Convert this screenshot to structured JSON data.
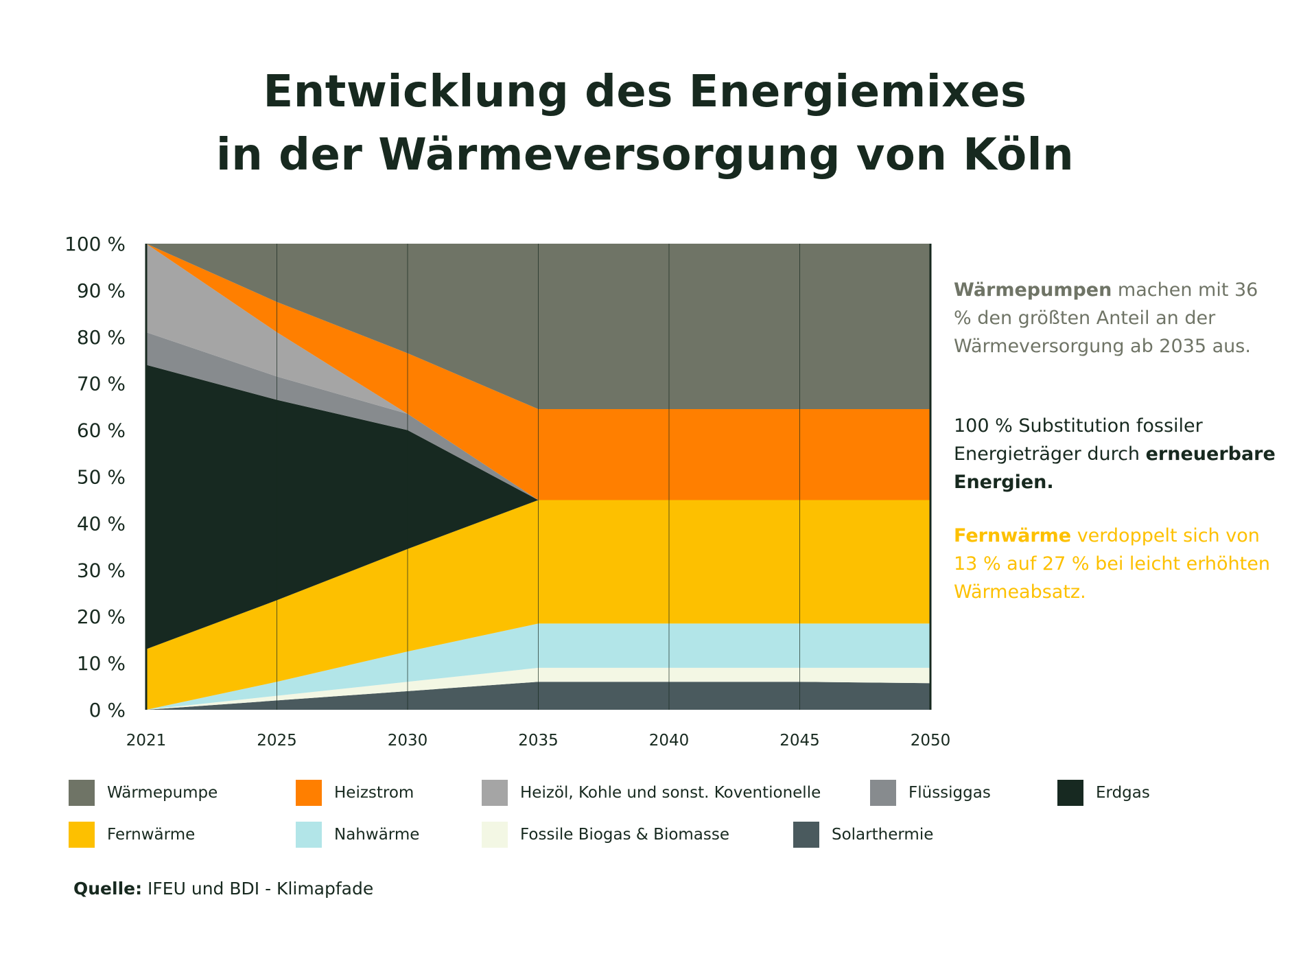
{
  "title": [
    "Entwicklung des Energiemixes",
    "in der Wärmeversorgung von Köln"
  ],
  "side_text": {
    "block1_bold": "Wärmepumpen",
    "block1_rest": " machen mit 36 % den größten Anteil an der Wärmeversorgung ab 2035 aus.",
    "block2_text": "100 % Substitution fossiler Energieträger durch ",
    "block2_bold": "erneuerbare Energien.",
    "block3_bold": "Fernwärme",
    "block3_rest": " verdoppelt sich von 13 % auf 27 % bei leicht erhöhten Wärmeabsatz."
  },
  "source": {
    "label": "Quelle:",
    "text": " IFEU und BDI - Klimapfade"
  },
  "chart_data": {
    "type": "area",
    "stacked": true,
    "categories": [
      "2021",
      "2025",
      "2030",
      "2035",
      "2040",
      "2045",
      "2050"
    ],
    "ylim": [
      0,
      100
    ],
    "y_ticks": [
      "0 %",
      "10 %",
      "20 %",
      "30 %",
      "40 %",
      "50 %",
      "60 %",
      "70 %",
      "80 %",
      "90 %",
      "100 %"
    ],
    "grid": "vertical",
    "legend_position": "bottom",
    "series": [
      {
        "name": "Solarthermie",
        "color": "#4a5a5e",
        "values": [
          0,
          2,
          4,
          6,
          6,
          6,
          5.7
        ]
      },
      {
        "name": "Fossile Biogas & Biomasse",
        "color": "#f3f7e4",
        "values": [
          0,
          1,
          2,
          3,
          3,
          3,
          3.3
        ]
      },
      {
        "name": "Nahwärme",
        "color": "#b2e5e8",
        "values": [
          0,
          3,
          6.5,
          9.5,
          9.5,
          9.5,
          9.5
        ]
      },
      {
        "name": "Fernwärme",
        "color": "#fdc000",
        "values": [
          13,
          17.5,
          22,
          26.5,
          26.5,
          26.5,
          26.5
        ]
      },
      {
        "name": "Erdgas",
        "color": "#172921",
        "values": [
          61,
          43,
          25.5,
          0,
          0,
          0,
          0
        ]
      },
      {
        "name": "Flüssiggas",
        "color": "#878b8e",
        "values": [
          7,
          5,
          3.5,
          0,
          0,
          0,
          0
        ]
      },
      {
        "name": "Heizöl, Kohle und sonst. Koventionelle",
        "color": "#a5a5a5",
        "values": [
          19,
          9.5,
          0,
          0,
          0,
          0,
          0
        ]
      },
      {
        "name": "Heizstrom",
        "color": "#ff7f00",
        "values": [
          0,
          6.5,
          13,
          19.5,
          19.5,
          19.5,
          19.5
        ]
      },
      {
        "name": "Wärmepumpe",
        "color": "#6f7466",
        "values": [
          0,
          12.5,
          23.5,
          35.5,
          35.5,
          35.5,
          35.5
        ]
      }
    ],
    "legend_order": [
      "Wärmepumpe",
      "Heizstrom",
      "Heizöl, Kohle und sonst. Koventionelle",
      "Flüssiggas",
      "Erdgas",
      "Fernwärme",
      "Nahwärme",
      "Fossile Biogas & Biomasse",
      "Solarthermie"
    ]
  }
}
